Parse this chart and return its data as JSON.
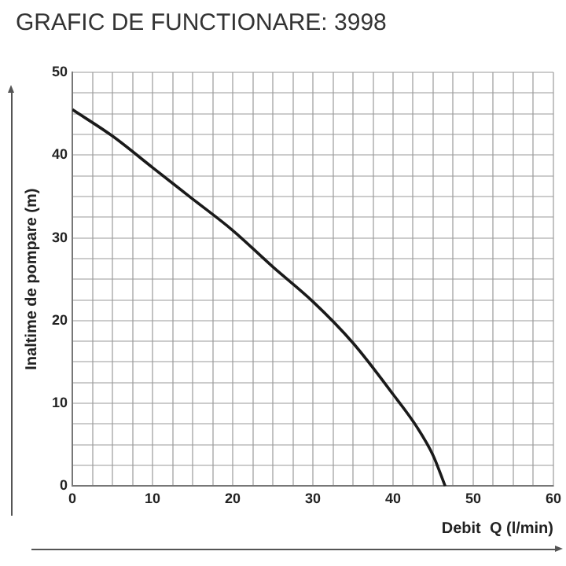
{
  "chart_data": {
    "type": "line",
    "title": "GRAFIC DE FUNCTIONARE: 3998",
    "xlabel": "Debit  Q (l/min)",
    "ylabel": "Inaltime de pompare (m)",
    "x": [
      0,
      5,
      10,
      15,
      20,
      25,
      30,
      35,
      40,
      43,
      45,
      46.5
    ],
    "series": [
      {
        "color": "#1a1a1a",
        "values": [
          45.5,
          42.3,
          38.5,
          34.7,
          30.9,
          26.5,
          22.3,
          17.3,
          11.1,
          7.1,
          3.7,
          0
        ]
      }
    ],
    "xlim": [
      0,
      60
    ],
    "ylim": [
      0,
      50
    ],
    "xticks": [
      0,
      {
        "value": 2.5,
        "label": null
      },
      {
        "value": 5,
        "label": null
      },
      {
        "value": 7.5,
        "label": null
      },
      10,
      {
        "value": 12.5,
        "label": null
      },
      {
        "value": 15,
        "label": null
      },
      {
        "value": 17.5,
        "label": null
      },
      20,
      {
        "value": 22.5,
        "label": null
      },
      {
        "value": 25,
        "label": null
      },
      {
        "value": 27.5,
        "label": null
      },
      30,
      {
        "value": 32.5,
        "label": null
      },
      {
        "value": 35,
        "label": null
      },
      {
        "value": 37.5,
        "label": null
      },
      40,
      {
        "value": 42.5,
        "label": null
      },
      {
        "value": 45,
        "label": null
      },
      {
        "value": 47.5,
        "label": null
      },
      50,
      {
        "value": 52.5,
        "label": null
      },
      {
        "value": 55,
        "label": null
      },
      {
        "value": 57.5,
        "label": null
      },
      60
    ],
    "yticks": [
      0,
      {
        "value": 2.5,
        "label": null
      },
      {
        "value": 5,
        "label": null
      },
      {
        "value": 7.5,
        "label": null
      },
      10,
      {
        "value": 12.5,
        "label": null
      },
      {
        "value": 15,
        "label": null
      },
      {
        "value": 17.5,
        "label": null
      },
      20,
      {
        "value": 22.5,
        "label": null
      },
      {
        "value": 25,
        "label": null
      },
      {
        "value": 27.5,
        "label": null
      },
      30,
      {
        "value": 32.5,
        "label": null
      },
      {
        "value": 35,
        "label": null
      },
      {
        "value": 37.5,
        "label": null
      },
      40,
      {
        "value": 42.5,
        "label": null
      },
      {
        "value": 45,
        "label": null
      },
      {
        "value": 47.5,
        "label": null
      },
      50
    ],
    "grid": true,
    "legend": false,
    "marker": "none",
    "line_style": "solid"
  }
}
